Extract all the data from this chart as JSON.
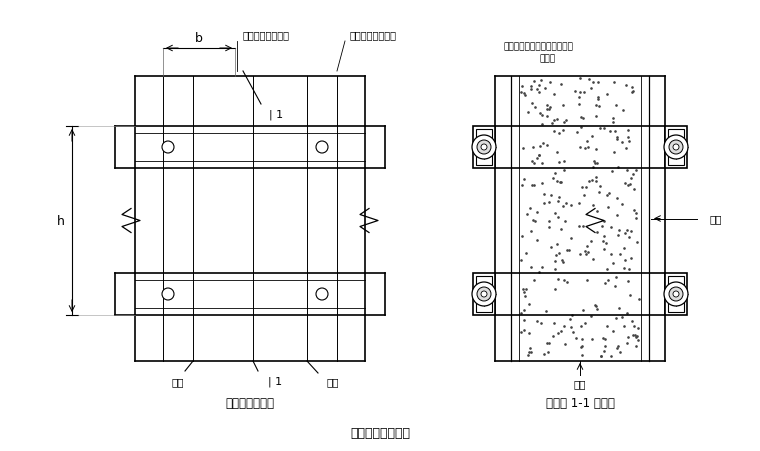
{
  "title": "墙模板设计简图。",
  "left_title": "墙模板正立面图",
  "right_title": "墙模板 1-1 剖面图",
  "bg_color": "#ffffff",
  "line_color": "#000000",
  "label_b": "b",
  "label_h": "h",
  "label_l1": "| 1",
  "label_mianban_left": "面板",
  "label_luoshuan_left": "螺栓",
  "label_mianban_right": "面板",
  "label_luoshuan_right": "螺栓",
  "label_zhujue": "主楞（圆形钢管）",
  "label_cijue": "次楞（圆形钢管）",
  "label_zhujue2_line1": "主楞（圆形钢管）次楞（固形",
  "label_zhujue2_line2": "钢管）"
}
